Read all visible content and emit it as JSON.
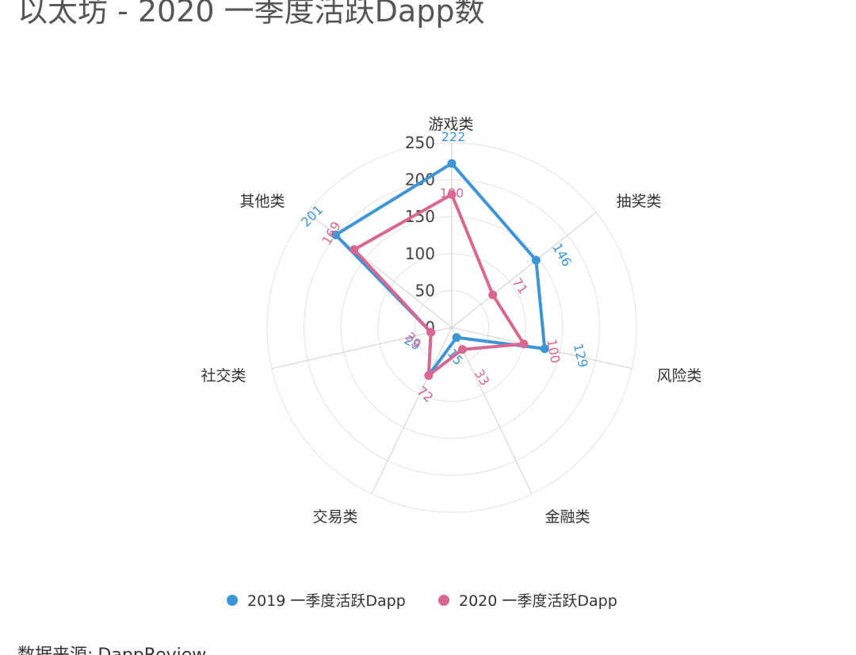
{
  "title": "以太坊 - 2020 一季度活跃Dapp数",
  "source": {
    "label": "数据来源:",
    "value": "DappReview"
  },
  "colors": {
    "series_2019": "#3e95d6",
    "series_2020": "#d86891",
    "grid": "#e6e6e6",
    "axis": "#d6d6d6"
  },
  "chart_data": {
    "type": "radar",
    "categories": [
      "游戏类",
      "抽奖类",
      "风险类",
      "金融类",
      "交易类",
      "社交类",
      "其他类"
    ],
    "series": [
      {
        "name": "2019 一季度活跃Dapp",
        "values": [
          222,
          146,
          129,
          15,
          72,
          29,
          201
        ]
      },
      {
        "name": "2020 一季度活跃Dapp",
        "values": [
          180,
          71,
          100,
          33,
          72,
          29,
          169
        ]
      }
    ],
    "rlim": [
      0,
      250
    ],
    "ticks": [
      0,
      50,
      100,
      150,
      200,
      250
    ],
    "grid": true,
    "legend_position": "bottom"
  }
}
